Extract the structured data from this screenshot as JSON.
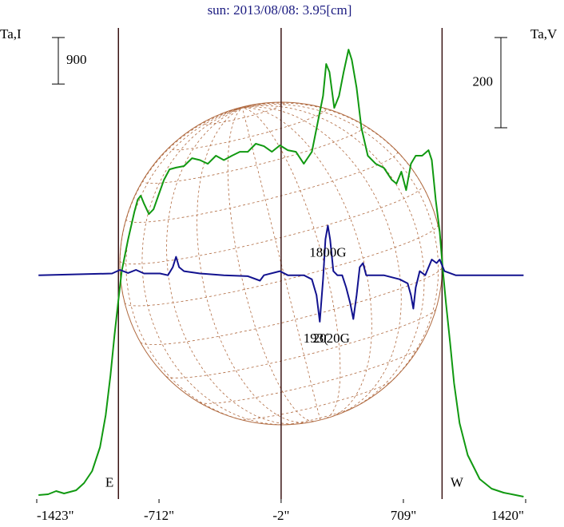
{
  "chart_data": {
    "type": "line",
    "title": "sun: 2013/08/08: 3.95[cm]",
    "y_label": "Ta,I",
    "y2_label": "Ta,V",
    "xlim": [
      -1423,
      1420
    ],
    "xticks": [
      {
        "value": -1423,
        "label": "-1423\""
      },
      {
        "value": -712,
        "label": "-712\""
      },
      {
        "value": -2,
        "label": "-2\""
      },
      {
        "value": 709,
        "label": "709\""
      },
      {
        "value": 1420,
        "label": "1420\""
      }
    ],
    "ylim": [
      0,
      9200
    ],
    "y2lim": [
      -496,
      557
    ],
    "vlines": [
      -948,
      -2,
      934
    ],
    "scale_bars": [
      {
        "value": 900,
        "axis": "y"
      },
      {
        "value": 200,
        "axis": "y2"
      }
    ],
    "annotations": [
      {
        "text": "1800G",
        "x": 270,
        "y2": 48
      },
      {
        "text": "193(",
        "x": 200,
        "y2": -142
      },
      {
        "text": "2020G",
        "x": 290,
        "y2": -142
      },
      {
        "text": "E",
        "x": -1000,
        "y": 300
      },
      {
        "text": "W",
        "x": 1020,
        "y": 300
      }
    ],
    "series": [
      {
        "name": "I",
        "color": "#119911",
        "x": [
          -1413,
          -1357,
          -1310,
          -1264,
          -1194,
          -1148,
          -1101,
          -1055,
          -1022,
          -994,
          -971,
          -948,
          -929,
          -892,
          -855,
          -836,
          -818,
          -799,
          -771,
          -744,
          -716,
          -683,
          -651,
          -613,
          -567,
          -520,
          -474,
          -428,
          -381,
          -335,
          -288,
          -242,
          -195,
          -149,
          -102,
          -56,
          -9,
          37,
          84,
          130,
          177,
          214,
          242,
          260,
          279,
          307,
          335,
          362,
          390,
          409,
          437,
          465,
          502,
          548,
          595,
          641,
          669,
          697,
          725,
          753,
          781,
          818,
          855,
          874,
          897,
          920,
          939,
          957,
          981,
          1004,
          1036,
          1083,
          1153,
          1222,
          1292,
          1362,
          1408
        ],
        "values": [
          77,
          93,
          155,
          108,
          170,
          309,
          541,
          1005,
          1623,
          2396,
          3169,
          3865,
          4406,
          5025,
          5566,
          5798,
          5875,
          5720,
          5519,
          5612,
          5875,
          6184,
          6385,
          6418,
          6447,
          6601,
          6563,
          6493,
          6648,
          6563,
          6648,
          6725,
          6725,
          6880,
          6833,
          6725,
          6849,
          6756,
          6725,
          6493,
          6725,
          7344,
          7807,
          8426,
          8271,
          7575,
          7807,
          8271,
          8704,
          8503,
          7962,
          7189,
          6648,
          6493,
          6416,
          6184,
          6107,
          6339,
          5983,
          6493,
          6648,
          6648,
          6756,
          6563,
          5798,
          5179,
          4406,
          3788,
          3015,
          2242,
          1469,
          850,
          387,
          201,
          124,
          77,
          46
        ]
      },
      {
        "name": "V",
        "color": "#12128f",
        "axis": "y2",
        "x": [
          -1413,
          -985,
          -939,
          -892,
          -846,
          -799,
          -706,
          -660,
          -632,
          -613,
          -595,
          -567,
          -474,
          -335,
          -195,
          -125,
          -102,
          -9,
          37,
          130,
          177,
          204,
          223,
          242,
          256,
          270,
          283,
          302,
          325,
          353,
          376,
          400,
          418,
          437,
          455,
          474,
          493,
          595,
          688,
          734,
          753,
          767,
          781,
          804,
          836,
          874,
          902,
          920,
          948,
          1013,
          1408
        ],
        "values": [
          0,
          4,
          12,
          5,
          12,
          4,
          4,
          0,
          18,
          41,
          18,
          9,
          4,
          0,
          -2,
          -12,
          0,
          9,
          0,
          0,
          -9,
          -44,
          -103,
          -9,
          80,
          110,
          80,
          9,
          0,
          0,
          -27,
          -62,
          -97,
          -44,
          18,
          27,
          0,
          0,
          -9,
          -18,
          -44,
          -74,
          -27,
          9,
          0,
          35,
          27,
          35,
          9,
          0,
          0
        ]
      }
    ]
  }
}
